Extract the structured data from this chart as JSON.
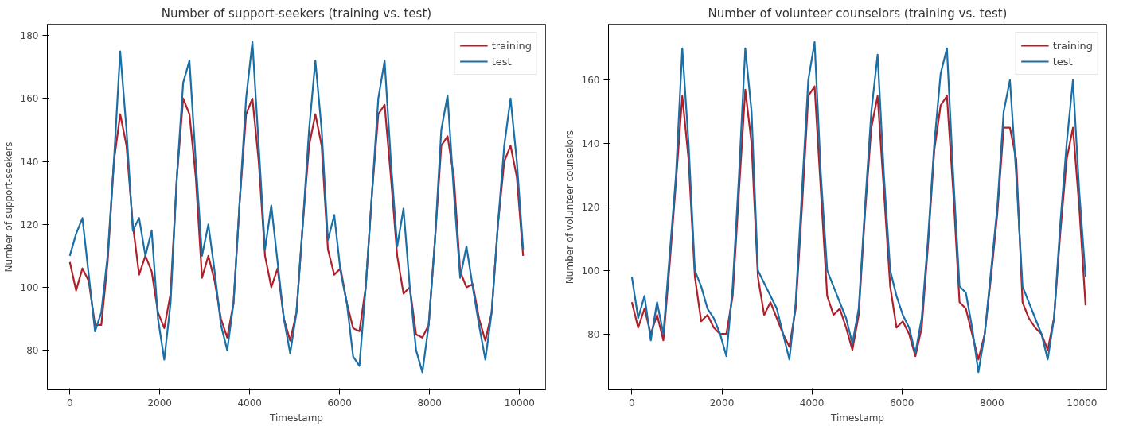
{
  "chart_data": [
    {
      "type": "line",
      "title": "Number of support-seekers (training vs. test)",
      "xlabel": "Timestamp",
      "ylabel": "Number of support-seekers",
      "x": [
        0,
        140,
        280,
        420,
        560,
        700,
        840,
        980,
        1120,
        1260,
        1400,
        1540,
        1680,
        1820,
        1960,
        2100,
        2240,
        2380,
        2520,
        2660,
        2800,
        2940,
        3080,
        3220,
        3360,
        3500,
        3640,
        3780,
        3920,
        4060,
        4200,
        4340,
        4480,
        4620,
        4760,
        4900,
        5040,
        5180,
        5320,
        5460,
        5600,
        5740,
        5880,
        6020,
        6160,
        6300,
        6440,
        6580,
        6720,
        6860,
        7000,
        7140,
        7280,
        7420,
        7560,
        7700,
        7840,
        7980,
        8120,
        8260,
        8400,
        8540,
        8680,
        8820,
        8960,
        9100,
        9240,
        9380,
        9520,
        9660,
        9800,
        9940,
        10080
      ],
      "xlim": [
        -500,
        10580
      ],
      "xticks": [
        0,
        2000,
        4000,
        6000,
        8000,
        10000
      ],
      "ylim": [
        67.4,
        183.6
      ],
      "yticks": [
        80,
        100,
        120,
        140,
        160,
        180
      ],
      "grid": false,
      "legend": "top right",
      "marker": "none",
      "line_style": "solid",
      "series": [
        {
          "name": "training",
          "color": "#b0202a",
          "values": [
            108,
            99,
            106,
            102,
            88,
            88,
            108,
            140,
            155,
            145,
            120,
            104,
            110,
            105,
            92,
            87,
            98,
            135,
            160,
            155,
            135,
            103,
            110,
            102,
            90,
            84,
            95,
            128,
            155,
            160,
            140,
            110,
            100,
            106,
            90,
            83,
            92,
            120,
            145,
            155,
            145,
            112,
            104,
            106,
            95,
            87,
            86,
            100,
            130,
            155,
            158,
            135,
            110,
            98,
            100,
            85,
            84,
            88,
            115,
            145,
            148,
            135,
            105,
            100,
            101,
            90,
            83,
            92,
            120,
            140,
            145,
            135,
            110
          ]
        },
        {
          "name": "test",
          "color": "#1a6fa6",
          "values": [
            110,
            117,
            122,
            104,
            86,
            92,
            110,
            140,
            175,
            150,
            118,
            122,
            110,
            118,
            90,
            77,
            95,
            135,
            165,
            172,
            140,
            110,
            120,
            105,
            88,
            80,
            95,
            128,
            160,
            178,
            145,
            112,
            126,
            108,
            90,
            79,
            92,
            120,
            150,
            172,
            150,
            115,
            123,
            105,
            95,
            78,
            75,
            100,
            130,
            160,
            172,
            140,
            113,
            125,
            100,
            80,
            73,
            88,
            115,
            150,
            161,
            130,
            103,
            113,
            100,
            88,
            77,
            92,
            120,
            145,
            160,
            140,
            112
          ]
        }
      ]
    },
    {
      "type": "line",
      "title": "Number of volunteer counselors (training vs. test)",
      "xlabel": "Timestamp",
      "ylabel": "Number of volunteer counselors",
      "x": [
        0,
        140,
        280,
        420,
        560,
        700,
        840,
        980,
        1120,
        1260,
        1400,
        1540,
        1680,
        1820,
        1960,
        2100,
        2240,
        2380,
        2520,
        2660,
        2800,
        2940,
        3080,
        3220,
        3360,
        3500,
        3640,
        3780,
        3920,
        4060,
        4200,
        4340,
        4480,
        4620,
        4760,
        4900,
        5040,
        5180,
        5320,
        5460,
        5600,
        5740,
        5880,
        6020,
        6160,
        6300,
        6440,
        6580,
        6720,
        6860,
        7000,
        7140,
        7280,
        7420,
        7560,
        7700,
        7840,
        7980,
        8120,
        8260,
        8400,
        8540,
        8680,
        8820,
        8960,
        9100,
        9240,
        9380,
        9520,
        9660,
        9800,
        9940,
        10080
      ],
      "xlim": [
        -520,
        10550
      ],
      "xticks": [
        0,
        2000,
        4000,
        6000,
        8000,
        10000
      ],
      "ylim": [
        62.4,
        177.6
      ],
      "yticks": [
        80,
        100,
        120,
        140,
        160
      ],
      "grid": false,
      "legend": "top right",
      "marker": "none",
      "line_style": "solid",
      "series": [
        {
          "name": "training",
          "color": "#b0202a",
          "values": [
            90,
            82,
            88,
            80,
            86,
            78,
            102,
            128,
            155,
            135,
            98,
            84,
            86,
            82,
            80,
            80,
            92,
            125,
            157,
            140,
            98,
            86,
            90,
            85,
            80,
            76,
            88,
            120,
            155,
            158,
            125,
            92,
            86,
            88,
            82,
            75,
            86,
            118,
            145,
            155,
            125,
            95,
            82,
            84,
            80,
            73,
            82,
            108,
            138,
            152,
            155,
            125,
            90,
            88,
            80,
            72,
            80,
            98,
            118,
            145,
            145,
            135,
            90,
            85,
            82,
            80,
            75,
            85,
            112,
            135,
            145,
            120,
            89
          ]
        },
        {
          "name": "test",
          "color": "#1a6fa6",
          "values": [
            98,
            85,
            92,
            78,
            90,
            80,
            105,
            130,
            170,
            140,
            100,
            95,
            88,
            85,
            80,
            73,
            95,
            130,
            170,
            150,
            100,
            96,
            92,
            88,
            80,
            72,
            90,
            125,
            160,
            172,
            130,
            100,
            95,
            90,
            85,
            77,
            88,
            120,
            150,
            168,
            130,
            100,
            92,
            86,
            82,
            74,
            85,
            110,
            140,
            162,
            170,
            130,
            95,
            93,
            82,
            68,
            80,
            100,
            120,
            150,
            160,
            130,
            95,
            90,
            85,
            80,
            72,
            85,
            115,
            140,
            160,
            125,
            98
          ]
        }
      ]
    }
  ]
}
